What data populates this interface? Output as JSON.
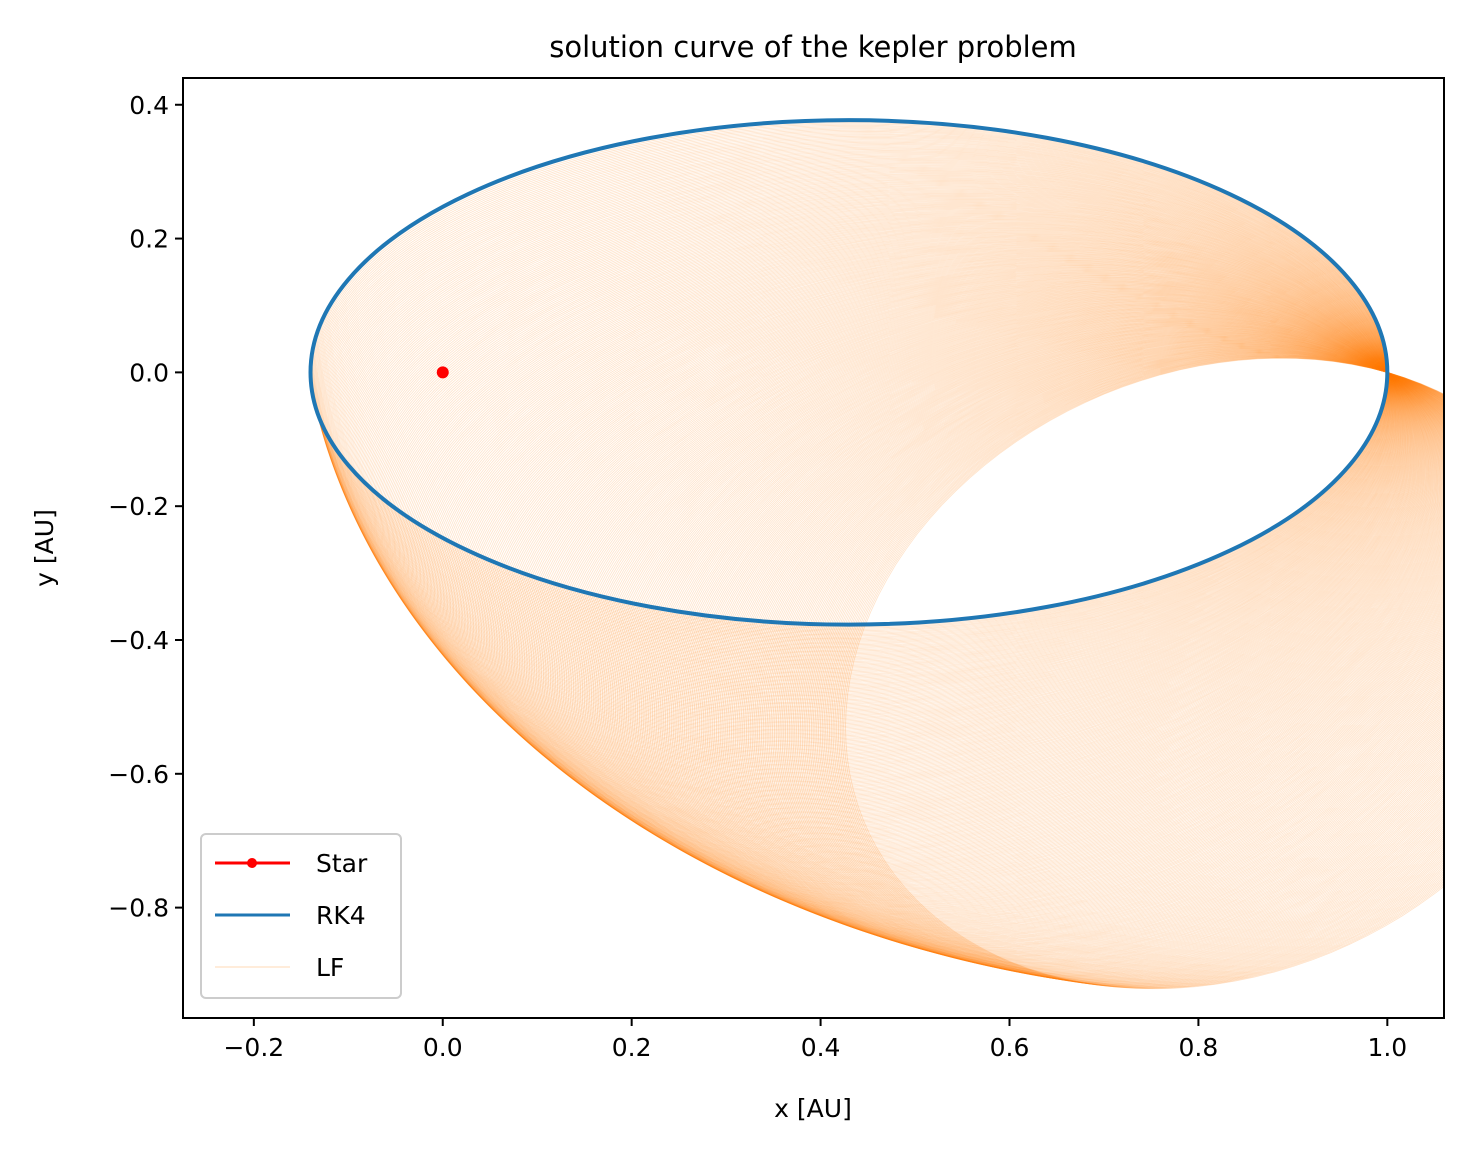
{
  "chart_data": {
    "type": "line",
    "title": "solution curve of the kepler problem",
    "xlabel": "x [AU]",
    "ylabel": "y [AU]",
    "xlim": [
      -0.275,
      1.06
    ],
    "ylim": [
      -0.965,
      0.44
    ],
    "xticks": [
      -0.2,
      0.0,
      0.2,
      0.4,
      0.6,
      0.8,
      1.0
    ],
    "xtick_labels": [
      "−0.2",
      "0.0",
      "0.2",
      "0.4",
      "0.6",
      "0.8",
      "1.0"
    ],
    "yticks": [
      0.4,
      0.2,
      0.0,
      -0.2,
      -0.4,
      -0.6,
      -0.8
    ],
    "ytick_labels": [
      "0.4",
      "0.2",
      "0.0",
      "−0.2",
      "−0.4",
      "−0.6",
      "−0.8"
    ],
    "grid": false,
    "legend_position": "lower-left",
    "series": [
      {
        "name": "Star",
        "color": "#ff0000",
        "marker": "circle",
        "points": [
          [
            0.0,
            0.0
          ]
        ]
      },
      {
        "name": "RK4",
        "color": "#1f77b4",
        "orbit": {
          "periapsis": [
            -0.14,
            0.0
          ],
          "apoapsis": [
            1.0,
            0.0
          ],
          "semi_minor": 0.377
        }
      },
      {
        "name": "LF",
        "color": "#ff7f0e",
        "precessing_orbit": {
          "fixed_point": [
            1.0,
            0.0
          ],
          "initial_orbit": {
            "periapsis": [
              -0.14,
              0.0
            ],
            "semi_minor": 0.377
          },
          "final_orbit": {
            "periapsis": [
              0.64,
              -0.9
            ],
            "semi_minor": 0.377
          },
          "extreme_points": [
            [
              -0.22,
              -0.2
            ],
            [
              0.37,
              -0.9
            ]
          ]
        }
      }
    ]
  }
}
